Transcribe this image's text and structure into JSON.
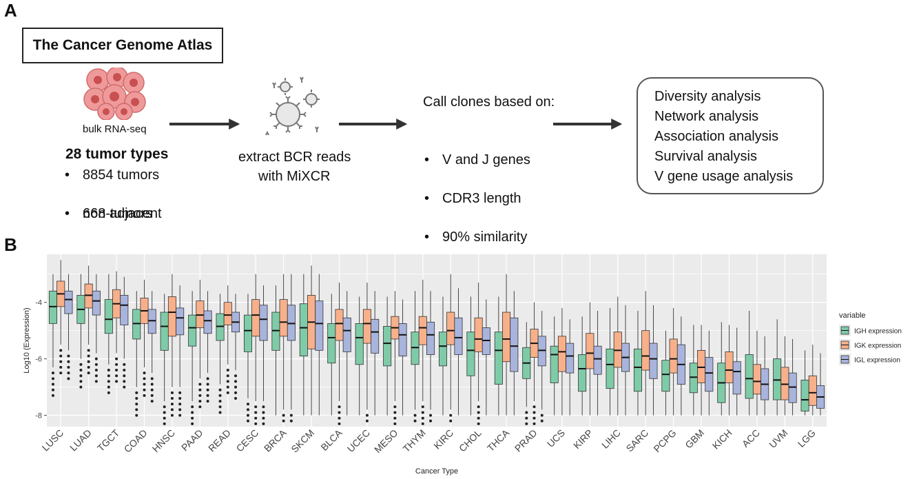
{
  "panel_a": {
    "label": "A",
    "tcga_title": "The Cancer Genome Atlas",
    "rnaseq_label": "bulk RNA-seq",
    "tumor_types": "28 tumor types",
    "tumor_bullets": [
      "8854 tumors",
      "668 adjacent"
    ],
    "tumor_bullet_cont": "non-tumors",
    "bcr_line1": "extract BCR reads",
    "bcr_line2": "with MiXCR",
    "clones_title": "Call clones based on:",
    "clone_bullets": [
      "V and J genes",
      "CDR3 length",
      "90% similarity"
    ],
    "analyses": [
      "Diversity analysis",
      "Network analysis",
      "Association analysis",
      "Survival analysis",
      "V gene usage analysis"
    ],
    "colors": {
      "cell_fill": "#e98b8b",
      "cell_dark": "#c04848",
      "bcell_fill": "#e6e6e6",
      "bcell_stroke": "#7a7a7a",
      "arrow": "#333333"
    }
  },
  "panel_b": {
    "label": "B"
  },
  "chart_data": {
    "type": "boxplot",
    "title": "",
    "xlabel": "Cancer Type",
    "ylabel": "Log10 (Expression)",
    "ylim": [
      -8.4,
      -2.3
    ],
    "yticks": [
      -8,
      -6,
      -4
    ],
    "ytick_labels": [
      "-8",
      "-6",
      "-4"
    ],
    "grid": true,
    "legend_title": "variable",
    "legend_position": "right",
    "categories": [
      "LUSC",
      "LUAD",
      "TGCT",
      "COAD",
      "HNSC",
      "PAAD",
      "READ",
      "CESC",
      "BRCA",
      "SKCM",
      "BLCA",
      "UCEC",
      "MESO",
      "THYM",
      "KIRC",
      "CHOL",
      "THCA",
      "PRAD",
      "UCS",
      "KIRP",
      "LIHC",
      "SARC",
      "PCPG",
      "GBM",
      "KICH",
      "ACC",
      "UVM",
      "LGG"
    ],
    "series": [
      {
        "name": "IGH expression",
        "color": "#7fcba8",
        "median": [
          -4.15,
          -4.25,
          -4.6,
          -4.75,
          -4.85,
          -4.9,
          -4.85,
          -5.0,
          -5.0,
          -4.9,
          -5.25,
          -5.25,
          -5.45,
          -5.6,
          -5.55,
          -5.7,
          -5.7,
          -6.15,
          -5.85,
          -6.35,
          -6.2,
          -6.3,
          -6.55,
          -6.65,
          -6.85,
          -6.7,
          -6.75,
          -7.45
        ],
        "q1": [
          -4.75,
          -4.75,
          -5.1,
          -5.3,
          -5.7,
          -5.55,
          -5.35,
          -5.75,
          -5.7,
          -5.9,
          -6.15,
          -6.2,
          -6.25,
          -6.2,
          -6.25,
          -6.6,
          -6.9,
          -6.7,
          -6.85,
          -7.15,
          -7.05,
          -7.15,
          -7.15,
          -7.2,
          -7.55,
          -7.4,
          -7.45,
          -7.85
        ],
        "q3": [
          -3.6,
          -3.75,
          -3.9,
          -4.25,
          -4.35,
          -4.45,
          -4.4,
          -4.45,
          -4.35,
          -4.05,
          -4.75,
          -4.75,
          -4.85,
          -5.05,
          -5.05,
          -5.05,
          -5.05,
          -5.6,
          -5.55,
          -5.85,
          -5.65,
          -5.65,
          -6.05,
          -6.15,
          -6.15,
          -5.85,
          -6.0,
          -6.75
        ],
        "wlo": [
          -6.3,
          -6.0,
          -6.2,
          -7.0,
          -7.5,
          -7.5,
          -6.9,
          -7.4,
          -8.0,
          -8.0,
          -8.0,
          -8.0,
          -8.0,
          -7.8,
          -8.0,
          -8.0,
          -8.0,
          -7.7,
          -8.0,
          -8.0,
          -8.0,
          -8.0,
          -8.0,
          -8.0,
          -8.0,
          -8.0,
          -8.0,
          -8.0
        ],
        "whi": [
          -3.0,
          -3.0,
          -3.0,
          -3.6,
          -3.7,
          -3.6,
          -3.7,
          -3.7,
          -3.4,
          -3.0,
          -3.7,
          -3.8,
          -3.8,
          -3.6,
          -3.8,
          -3.8,
          -3.8,
          -4.7,
          -4.5,
          -4.5,
          -4.2,
          -4.3,
          -5.0,
          -4.8,
          -4.7,
          -4.3,
          -4.6,
          -5.7
        ]
      },
      {
        "name": "IGK expression",
        "color": "#f8b08a",
        "median": [
          -3.7,
          -3.75,
          -4.05,
          -4.3,
          -4.35,
          -4.45,
          -4.45,
          -4.45,
          -4.7,
          -4.7,
          -4.75,
          -4.75,
          -4.9,
          -4.9,
          -5.0,
          -5.3,
          -5.3,
          -5.45,
          -5.75,
          -5.8,
          -5.7,
          -5.9,
          -6.0,
          -6.3,
          -6.4,
          -6.8,
          -6.9,
          -7.2
        ],
        "q1": [
          -4.15,
          -4.2,
          -4.55,
          -4.75,
          -5.2,
          -4.9,
          -4.8,
          -5.2,
          -5.2,
          -5.65,
          -5.35,
          -5.45,
          -5.3,
          -5.5,
          -5.5,
          -5.75,
          -6.1,
          -5.95,
          -6.45,
          -6.35,
          -6.3,
          -6.4,
          -6.5,
          -6.85,
          -6.85,
          -7.25,
          -7.45,
          -7.65
        ],
        "q3": [
          -3.25,
          -3.35,
          -3.55,
          -3.85,
          -3.8,
          -3.95,
          -4.0,
          -3.9,
          -3.9,
          -3.75,
          -4.25,
          -4.25,
          -4.5,
          -4.5,
          -4.35,
          -4.55,
          -4.35,
          -4.95,
          -5.2,
          -5.1,
          -5.05,
          -5.0,
          -5.3,
          -5.7,
          -5.75,
          -6.2,
          -6.3,
          -6.6
        ],
        "wlo": [
          -5.5,
          -5.5,
          -5.8,
          -6.3,
          -7.0,
          -6.7,
          -6.2,
          -7.5,
          -7.8,
          -8.0,
          -7.5,
          -7.8,
          -7.5,
          -7.5,
          -7.8,
          -7.5,
          -8.0,
          -7.5,
          -8.0,
          -8.0,
          -8.0,
          -8.0,
          -8.0,
          -8.0,
          -8.0,
          -8.0,
          -8.0,
          -8.0
        ],
        "whi": [
          -2.5,
          -2.7,
          -2.9,
          -3.2,
          -3.0,
          -3.2,
          -3.4,
          -3.0,
          -3.0,
          -2.7,
          -3.3,
          -3.3,
          -3.6,
          -3.2,
          -3.0,
          -3.3,
          -3.0,
          -4.0,
          -4.2,
          -4.0,
          -3.8,
          -3.6,
          -4.2,
          -4.8,
          -4.8,
          -5.0,
          -5.2,
          -5.5
        ]
      },
      {
        "name": "IGL expression",
        "color": "#a9b4dd",
        "median": [
          -3.9,
          -3.95,
          -4.1,
          -4.65,
          -4.55,
          -4.65,
          -4.7,
          -4.6,
          -4.75,
          -4.75,
          -5.0,
          -5.05,
          -5.15,
          -5.15,
          -5.25,
          -5.35,
          -5.55,
          -5.7,
          -5.9,
          -6.0,
          -5.95,
          -6.0,
          -6.2,
          -6.5,
          -6.45,
          -6.9,
          -7.0,
          -7.35
        ],
        "q1": [
          -4.4,
          -4.45,
          -4.8,
          -5.1,
          -5.15,
          -5.1,
          -5.05,
          -5.35,
          -5.35,
          -5.7,
          -5.75,
          -5.8,
          -5.9,
          -5.85,
          -5.85,
          -5.85,
          -6.45,
          -6.25,
          -6.5,
          -6.55,
          -6.45,
          -6.7,
          -6.9,
          -7.15,
          -7.25,
          -7.45,
          -7.55,
          -7.75
        ],
        "q3": [
          -3.6,
          -3.6,
          -3.75,
          -4.25,
          -4.2,
          -4.3,
          -4.35,
          -4.1,
          -4.1,
          -3.95,
          -4.55,
          -4.6,
          -4.75,
          -4.7,
          -4.55,
          -4.9,
          -4.55,
          -5.2,
          -5.45,
          -5.55,
          -5.45,
          -5.45,
          -5.5,
          -5.95,
          -6.1,
          -6.35,
          -6.5,
          -6.95
        ],
        "wlo": [
          -5.7,
          -5.8,
          -6.0,
          -6.5,
          -7.0,
          -6.5,
          -6.4,
          -7.5,
          -7.8,
          -8.0,
          -8.0,
          -8.0,
          -8.0,
          -7.8,
          -8.0,
          -8.0,
          -8.0,
          -7.8,
          -8.0,
          -8.0,
          -8.0,
          -8.0,
          -8.0,
          -8.0,
          -8.0,
          -8.0,
          -8.0,
          -8.0
        ],
        "whi": [
          -3.0,
          -3.0,
          -3.1,
          -3.6,
          -3.4,
          -3.6,
          -3.7,
          -3.4,
          -3.0,
          -3.0,
          -3.6,
          -3.6,
          -3.9,
          -3.6,
          -3.5,
          -3.9,
          -3.6,
          -4.3,
          -4.6,
          -4.3,
          -4.1,
          -4.1,
          -4.5,
          -5.0,
          -4.9,
          -5.2,
          -5.3,
          -5.8
        ]
      }
    ]
  }
}
